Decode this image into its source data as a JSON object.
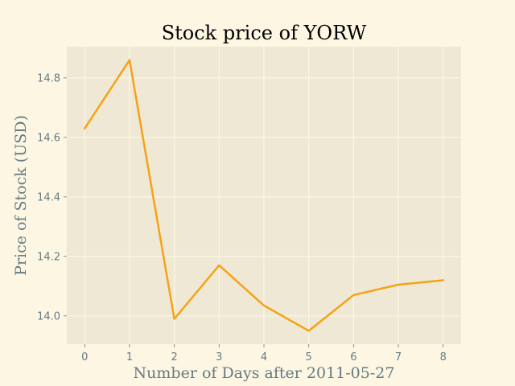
{
  "chart_data": {
    "type": "line",
    "title": "Stock price of YORW",
    "xlabel": "Number of Days after 2011-05-27",
    "ylabel": "Price of Stock (USD)",
    "x": [
      0,
      1,
      2,
      3,
      4,
      5,
      6,
      7,
      8
    ],
    "series": [
      {
        "values": [
          14.63,
          14.86,
          13.99,
          14.17,
          14.035,
          13.95,
          14.07,
          14.105,
          14.12
        ]
      }
    ],
    "xlim": [
      -0.4,
      8.4
    ],
    "ylim": [
      13.905,
      14.905
    ],
    "xticks": [
      0,
      1,
      2,
      3,
      4,
      5,
      6,
      7,
      8
    ],
    "yticks": [
      14.0,
      14.2,
      14.4,
      14.6,
      14.8
    ],
    "ytick_labels": [
      "14.0",
      "14.2",
      "14.4",
      "14.6",
      "14.8"
    ],
    "grid": true,
    "colors": {
      "background": "#fdf6e3",
      "plot_background": "#eee8d5",
      "line": "#f5a316",
      "text": "#657b83"
    }
  }
}
